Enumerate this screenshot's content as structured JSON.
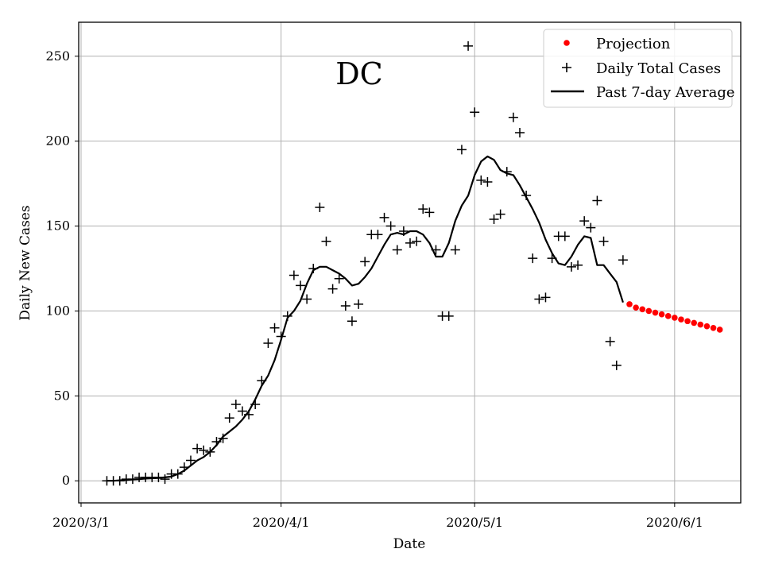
{
  "chart_data": {
    "type": "line",
    "title": "",
    "annotation": "DC",
    "xlabel": "Date",
    "ylabel": "Daily New Cases",
    "x_ticks": [
      "2020/3/1",
      "2020/4/1",
      "2020/5/1",
      "2020/6/1"
    ],
    "y_ticks": [
      "0",
      "50",
      "100",
      "150",
      "200",
      "250"
    ],
    "xlim": [
      "2020-03-01",
      "2020-06-11"
    ],
    "ylim": [
      -13,
      270
    ],
    "grid": true,
    "legend_position": "top-right",
    "colors": {
      "projection": "#ff0000",
      "daily": "#000000",
      "average": "#000000"
    },
    "series": [
      {
        "name": "Projection",
        "style": "dots",
        "x": [
          "2020-05-25",
          "2020-05-26",
          "2020-05-27",
          "2020-05-28",
          "2020-05-29",
          "2020-05-30",
          "2020-05-31",
          "2020-06-01",
          "2020-06-02",
          "2020-06-03",
          "2020-06-04",
          "2020-06-05",
          "2020-06-06",
          "2020-06-07",
          "2020-06-08"
        ],
        "y": [
          104,
          102,
          101,
          100,
          99,
          98,
          97,
          96,
          95,
          94,
          93,
          92,
          91,
          90,
          89
        ]
      },
      {
        "name": "Daily Total Cases",
        "style": "plus",
        "x": [
          "2020-03-05",
          "2020-03-06",
          "2020-03-07",
          "2020-03-08",
          "2020-03-09",
          "2020-03-10",
          "2020-03-11",
          "2020-03-12",
          "2020-03-13",
          "2020-03-14",
          "2020-03-15",
          "2020-03-16",
          "2020-03-17",
          "2020-03-18",
          "2020-03-19",
          "2020-03-20",
          "2020-03-21",
          "2020-03-22",
          "2020-03-23",
          "2020-03-24",
          "2020-03-25",
          "2020-03-26",
          "2020-03-27",
          "2020-03-28",
          "2020-03-29",
          "2020-03-30",
          "2020-03-31",
          "2020-04-01",
          "2020-04-02",
          "2020-04-03",
          "2020-04-04",
          "2020-04-05",
          "2020-04-06",
          "2020-04-07",
          "2020-04-08",
          "2020-04-09",
          "2020-04-10",
          "2020-04-11",
          "2020-04-12",
          "2020-04-13",
          "2020-04-14",
          "2020-04-15",
          "2020-04-16",
          "2020-04-17",
          "2020-04-18",
          "2020-04-19",
          "2020-04-20",
          "2020-04-21",
          "2020-04-22",
          "2020-04-23",
          "2020-04-24",
          "2020-04-25",
          "2020-04-26",
          "2020-04-27",
          "2020-04-28",
          "2020-04-29",
          "2020-04-30",
          "2020-05-01",
          "2020-05-02",
          "2020-05-03",
          "2020-05-04",
          "2020-05-05",
          "2020-05-06",
          "2020-05-07",
          "2020-05-08",
          "2020-05-09",
          "2020-05-10",
          "2020-05-11",
          "2020-05-12",
          "2020-05-13",
          "2020-05-14",
          "2020-05-15",
          "2020-05-16",
          "2020-05-17",
          "2020-05-18",
          "2020-05-19",
          "2020-05-20",
          "2020-05-21",
          "2020-05-22",
          "2020-05-23",
          "2020-05-24"
        ],
        "y": [
          0,
          0,
          0,
          1,
          1,
          2,
          2,
          2,
          2,
          1,
          4,
          4,
          8,
          12,
          19,
          18,
          17,
          23,
          25,
          37,
          45,
          41,
          39,
          45,
          59,
          81,
          90,
          85,
          97,
          121,
          115,
          107,
          125,
          161,
          141,
          113,
          119,
          103,
          94,
          104,
          129,
          145,
          145,
          155,
          150,
          136,
          147,
          140,
          141,
          160,
          158,
          136,
          97,
          97,
          136,
          195,
          256,
          217,
          177,
          176,
          154,
          157,
          182,
          214,
          205,
          168,
          131,
          107,
          108,
          131,
          144,
          144,
          126,
          127,
          153,
          149,
          165,
          141,
          82,
          68,
          130
        ]
      },
      {
        "name": "Past 7-day Average",
        "style": "line",
        "x": [
          "2020-03-05",
          "2020-03-06",
          "2020-03-07",
          "2020-03-08",
          "2020-03-09",
          "2020-03-10",
          "2020-03-11",
          "2020-03-12",
          "2020-03-13",
          "2020-03-14",
          "2020-03-15",
          "2020-03-16",
          "2020-03-17",
          "2020-03-18",
          "2020-03-19",
          "2020-03-20",
          "2020-03-21",
          "2020-03-22",
          "2020-03-23",
          "2020-03-24",
          "2020-03-25",
          "2020-03-26",
          "2020-03-27",
          "2020-03-28",
          "2020-03-29",
          "2020-03-30",
          "2020-03-31",
          "2020-04-01",
          "2020-04-02",
          "2020-04-03",
          "2020-04-04",
          "2020-04-05",
          "2020-04-06",
          "2020-04-07",
          "2020-04-08",
          "2020-04-09",
          "2020-04-10",
          "2020-04-11",
          "2020-04-12",
          "2020-04-13",
          "2020-04-14",
          "2020-04-15",
          "2020-04-16",
          "2020-04-17",
          "2020-04-18",
          "2020-04-19",
          "2020-04-20",
          "2020-04-21",
          "2020-04-22",
          "2020-04-23",
          "2020-04-24",
          "2020-04-25",
          "2020-04-26",
          "2020-04-27",
          "2020-04-28",
          "2020-04-29",
          "2020-04-30",
          "2020-05-01",
          "2020-05-02",
          "2020-05-03",
          "2020-05-04",
          "2020-05-05",
          "2020-05-06",
          "2020-05-07",
          "2020-05-08",
          "2020-05-09",
          "2020-05-10",
          "2020-05-11",
          "2020-05-12",
          "2020-05-13",
          "2020-05-14",
          "2020-05-15",
          "2020-05-16",
          "2020-05-17",
          "2020-05-18",
          "2020-05-19",
          "2020-05-20",
          "2020-05-21",
          "2020-05-22",
          "2020-05-23",
          "2020-05-24"
        ],
        "y": [
          0,
          0,
          0.3,
          0.5,
          0.8,
          1,
          1.3,
          1.5,
          1.7,
          2,
          2.5,
          4,
          6,
          9,
          12,
          14,
          17,
          21,
          26,
          29,
          32,
          36,
          41,
          48,
          56,
          62,
          71,
          83,
          96,
          100,
          106,
          116,
          124,
          126,
          126,
          124,
          122,
          119,
          115,
          116,
          120,
          125,
          132,
          139,
          145,
          146,
          145,
          147,
          147,
          145,
          140,
          132,
          132,
          140,
          153,
          162,
          168,
          180,
          188,
          191,
          189,
          183,
          181,
          180,
          174,
          167,
          160,
          152,
          142,
          134,
          128,
          127,
          132,
          139,
          144,
          143,
          127,
          127,
          122,
          117,
          105
        ]
      }
    ]
  }
}
